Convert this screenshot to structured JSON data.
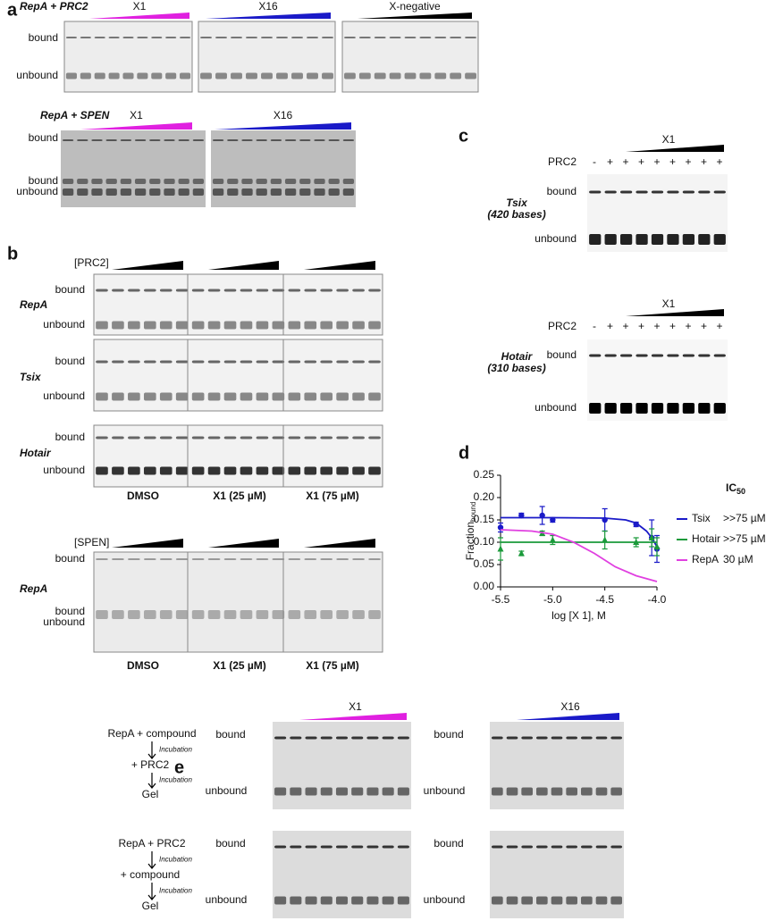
{
  "panel_a": {
    "label": "a",
    "row1": {
      "condition": "RepA + PRC2",
      "gels": [
        {
          "compound": "X1",
          "color": "#e020e0"
        },
        {
          "compound": "X16",
          "color": "#1a1ac8"
        },
        {
          "compound": "X-negative",
          "color": "#000000"
        }
      ],
      "bands": [
        "bound",
        "unbound"
      ]
    },
    "row2": {
      "condition": "RepA + SPEN",
      "gels": [
        {
          "compound": "X1",
          "color": "#e020e0"
        },
        {
          "compound": "X16",
          "color": "#1a1ac8"
        }
      ],
      "bands": [
        "bound",
        "bound",
        "unbound"
      ]
    }
  },
  "panel_b": {
    "label": "b",
    "prc2": {
      "title": "[PRC2]",
      "rnas": [
        "RepA",
        "Tsix",
        "Hotair"
      ],
      "bands": [
        "bound",
        "unbound"
      ]
    },
    "spen": {
      "title": "[SPEN]",
      "rna": "RepA",
      "bands": [
        "bound",
        "bound",
        "unbound"
      ]
    },
    "conditions": [
      {
        "text": "DMSO",
        "color": "#000000"
      },
      {
        "text": "X1 (25 µM)",
        "color": "#e020e0"
      },
      {
        "text": "X1 (75 µM)",
        "color": "#6aaa2a"
      }
    ]
  },
  "panel_c": {
    "label": "c",
    "compound": "X1",
    "enzyme": "PRC2",
    "lanes": [
      "-",
      "+",
      "+",
      "+",
      "+",
      "+",
      "+",
      "+",
      "+"
    ],
    "bands": [
      "bound",
      "unbound"
    ],
    "gels": [
      {
        "rna": "Tsix",
        "length": "(420 bases)",
        "color": "#1a1ac8"
      },
      {
        "rna": "Hotair",
        "length": "(310 bases)",
        "color": "#1a9a3a"
      }
    ]
  },
  "panel_e": {
    "label": "e",
    "note": "Incubation",
    "bands": [
      "bound",
      "unbound"
    ],
    "schemes": [
      [
        "RepA + compound",
        "+ PRC2",
        "Gel"
      ],
      [
        "RepA + PRC2",
        "+ compound",
        "Gel"
      ]
    ],
    "compounds": [
      {
        "name": "X1",
        "color": "#e020e0"
      },
      {
        "name": "X16",
        "color": "#1a1ac8"
      }
    ]
  },
  "chart_data": {
    "type": "scatter",
    "label": "d",
    "xlabel": "log [X 1],  M",
    "ylabel": "Fraction",
    "ylabel_sub": "bound",
    "legend_title": "IC",
    "legend_title_sub": "50",
    "xlim": [
      -5.5,
      -4.0
    ],
    "xticks": [
      -5.5,
      {
        "value": -5,
        "label": "-5.0"
      },
      -4.5,
      {
        "value": -4,
        "label": "-4.0"
      }
    ],
    "ylim": [
      0,
      0.25
    ],
    "yticks": [
      {
        "value": 0,
        "label": "0.00"
      },
      0.05,
      {
        "value": 0.1,
        "label": "0.10"
      },
      0.15,
      {
        "value": 0.2,
        "label": "0.20"
      },
      0.25
    ],
    "series": [
      {
        "name": "Tsix",
        "ic50": ">>75 µM",
        "color": "#1a1ac8",
        "x": [
          -5.5,
          -5.3,
          -5.1,
          -5.0,
          -4.5,
          -4.2,
          -4.05,
          -4.0
        ],
        "values": [
          0.133,
          0.16,
          0.16,
          0.15,
          0.15,
          0.14,
          0.11,
          0.085
        ],
        "errors": [
          0.01,
          0.005,
          0.02,
          0.005,
          0.025,
          0.005,
          0.04,
          0.03
        ],
        "fit": {
          "x": [
            -5.5,
            -5.0,
            -4.5,
            -4.3,
            -4.2,
            -4.1,
            -4.05,
            -4.0
          ],
          "values": [
            0.155,
            0.155,
            0.154,
            0.15,
            0.143,
            0.125,
            0.11,
            0.09
          ]
        }
      },
      {
        "name": "Hotair",
        "ic50": ">>75 µM",
        "color": "#1a9a3a",
        "x": [
          -5.5,
          -5.3,
          -5.1,
          -5.0,
          -4.5,
          -4.2,
          -4.05,
          -4.0
        ],
        "values": [
          0.085,
          0.075,
          0.12,
          0.105,
          0.105,
          0.1,
          0.11,
          0.09
        ],
        "errors": [
          0.025,
          0.005,
          0.005,
          0.01,
          0.02,
          0.01,
          0.02,
          0.02
        ],
        "fit": {
          "x": [
            -5.5,
            -4.0
          ],
          "values": [
            0.1,
            0.1
          ]
        }
      },
      {
        "name": "RepA",
        "ic50": "30 µM",
        "color": "#e040e0",
        "x": [],
        "values": [],
        "errors": [],
        "fit": {
          "x": [
            -5.5,
            -5.2,
            -5.0,
            -4.8,
            -4.6,
            -4.4,
            -4.2,
            -4.0
          ],
          "values": [
            0.128,
            0.125,
            0.118,
            0.1,
            0.075,
            0.045,
            0.025,
            0.012
          ]
        }
      }
    ]
  }
}
